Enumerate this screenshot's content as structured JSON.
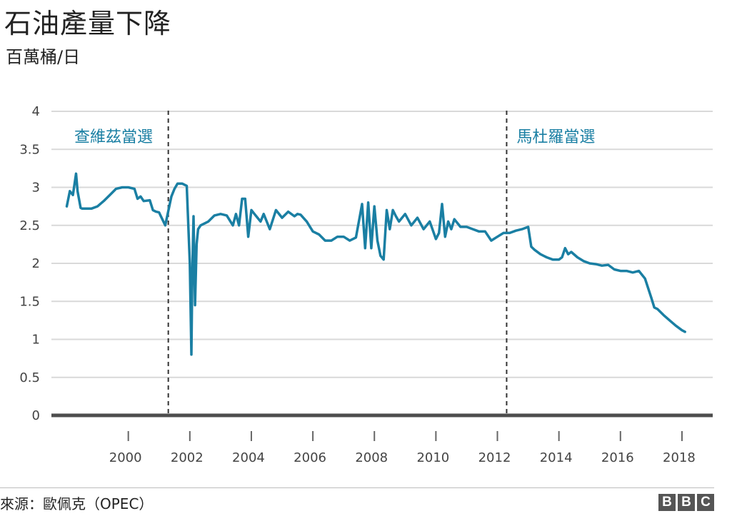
{
  "header": {
    "title": "石油產量下降",
    "subtitle": "百萬桶/日"
  },
  "footer": {
    "source": "來源：歐佩克（OPEC）",
    "logo_letters": [
      "B",
      "B",
      "C"
    ]
  },
  "colors": {
    "line": "#1a7fa3",
    "annotation": "#1a7fa3",
    "grid": "#d9d9d9",
    "axis": "#4d4d4d"
  },
  "chart_data": {
    "type": "line",
    "title": "石油產量下降",
    "ylabel": "百萬桶/日",
    "xlabel": "",
    "xlim": [
      1997.5,
      2019.0
    ],
    "ylim": [
      0,
      4
    ],
    "yticks": [
      0,
      0.5,
      1,
      1.5,
      2,
      2.5,
      3,
      3.5,
      4
    ],
    "ytick_labels": [
      "0",
      "0.5",
      "1",
      "1.5",
      "2",
      "2.5",
      "3",
      "3.5",
      "4"
    ],
    "xticks": [
      2000,
      2002,
      2004,
      2006,
      2008,
      2010,
      2012,
      2014,
      2016,
      2018
    ],
    "xtick_labels": [
      "2000",
      "2002",
      "2004",
      "2006",
      "2008",
      "2010",
      "2012",
      "2014",
      "2016",
      "2018"
    ],
    "grid": true,
    "annotations": [
      {
        "label": "查維茲當選",
        "x": 2001.3
      },
      {
        "label": "馬杜羅當選",
        "x": 2012.3
      }
    ],
    "series": [
      {
        "x": [
          1998.0,
          1998.1,
          1998.2,
          1998.3,
          1998.35,
          1998.45,
          1998.5,
          1998.6,
          1998.8,
          1999.0,
          1999.2,
          1999.4,
          1999.6,
          1999.8,
          2000.0,
          2000.2,
          2000.3,
          2000.4,
          2000.5,
          2000.7,
          2000.8,
          2000.9,
          2001.0,
          2001.2,
          2001.4,
          2001.5,
          2001.6,
          2001.75,
          2001.9,
          2002.0,
          2002.05,
          2002.08,
          2002.12,
          2002.17,
          2002.22,
          2002.27,
          2002.35,
          2002.6,
          2002.8,
          2003.0,
          2003.2,
          2003.4,
          2003.5,
          2003.6,
          2003.7,
          2003.8,
          2003.9,
          2004.0,
          2004.1,
          2004.2,
          2004.3,
          2004.4,
          2004.5,
          2004.6,
          2004.8,
          2005.0,
          2005.2,
          2005.4,
          2005.5,
          2005.6,
          2005.8,
          2006.0,
          2006.2,
          2006.4,
          2006.6,
          2006.8,
          2007.0,
          2007.2,
          2007.4,
          2007.6,
          2007.7,
          2007.8,
          2007.9,
          2008.0,
          2008.1,
          2008.2,
          2008.3,
          2008.4,
          2008.5,
          2008.6,
          2008.7,
          2008.8,
          2009.0,
          2009.2,
          2009.4,
          2009.6,
          2009.8,
          2010.0,
          2010.1,
          2010.2,
          2010.3,
          2010.4,
          2010.5,
          2010.6,
          2010.8,
          2011.0,
          2011.2,
          2011.4,
          2011.6,
          2011.8,
          2012.0,
          2012.2,
          2012.4,
          2012.6,
          2012.8,
          2013.0,
          2013.1,
          2013.2,
          2013.4,
          2013.6,
          2013.8,
          2014.0,
          2014.1,
          2014.2,
          2014.3,
          2014.4,
          2014.6,
          2014.8,
          2015.0,
          2015.2,
          2015.4,
          2015.6,
          2015.8,
          2016.0,
          2016.2,
          2016.4,
          2016.6,
          2016.8,
          2017.0,
          2017.1,
          2017.2,
          2017.4,
          2017.6,
          2017.8,
          2018.0,
          2018.1
        ],
        "y": [
          2.75,
          2.95,
          2.9,
          3.18,
          2.95,
          2.73,
          2.72,
          2.72,
          2.72,
          2.75,
          2.82,
          2.9,
          2.98,
          3.0,
          3.0,
          2.98,
          2.85,
          2.88,
          2.82,
          2.83,
          2.7,
          2.68,
          2.67,
          2.5,
          2.88,
          2.98,
          3.05,
          3.05,
          3.02,
          2.0,
          0.8,
          1.9,
          2.62,
          1.45,
          2.25,
          2.45,
          2.5,
          2.55,
          2.63,
          2.65,
          2.63,
          2.5,
          2.65,
          2.5,
          2.85,
          2.85,
          2.35,
          2.7,
          2.65,
          2.6,
          2.55,
          2.65,
          2.55,
          2.45,
          2.7,
          2.6,
          2.68,
          2.62,
          2.65,
          2.64,
          2.55,
          2.42,
          2.38,
          2.3,
          2.3,
          2.35,
          2.35,
          2.3,
          2.34,
          2.78,
          2.2,
          2.8,
          2.2,
          2.75,
          2.3,
          2.1,
          2.05,
          2.7,
          2.45,
          2.7,
          2.62,
          2.55,
          2.65,
          2.5,
          2.6,
          2.45,
          2.55,
          2.32,
          2.4,
          2.78,
          2.35,
          2.55,
          2.45,
          2.58,
          2.48,
          2.48,
          2.45,
          2.42,
          2.42,
          2.3,
          2.35,
          2.4,
          2.4,
          2.43,
          2.45,
          2.48,
          2.22,
          2.18,
          2.12,
          2.08,
          2.05,
          2.05,
          2.08,
          2.2,
          2.12,
          2.15,
          2.08,
          2.03,
          2.0,
          1.99,
          1.97,
          1.98,
          1.92,
          1.9,
          1.9,
          1.88,
          1.9,
          1.8,
          1.55,
          1.42,
          1.4,
          1.32,
          1.25,
          1.18,
          1.12,
          1.1
        ]
      }
    ]
  }
}
